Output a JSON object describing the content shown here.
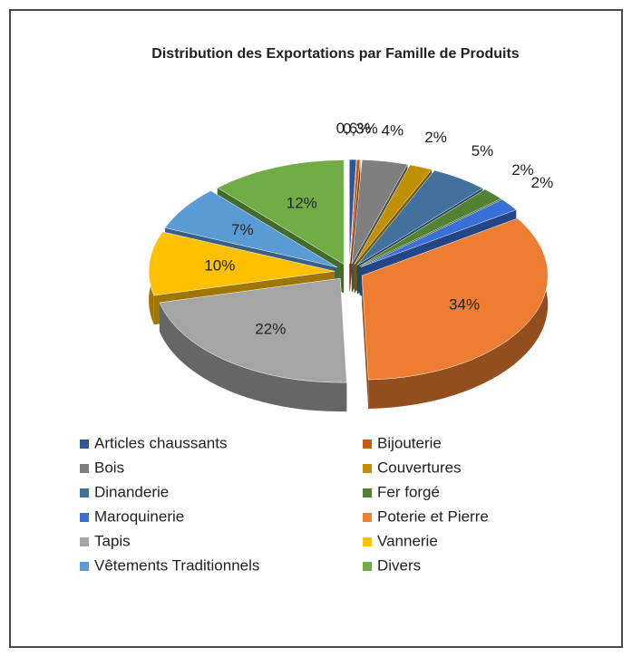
{
  "chart_data": {
    "type": "pie",
    "title": "Distribution des Exportations par Famille de Produits",
    "categories": [
      "Articles chaussants",
      "Bijouterie",
      "Bois",
      "Couvertures",
      "Dinanderie",
      "Fer forgé",
      "Maroquinerie",
      "Poterie et Pierre",
      "Tapis",
      "Vannerie",
      "Vêtements Traditionnels",
      "Divers"
    ],
    "values": [
      0.6,
      0.3,
      4,
      2,
      5,
      2,
      2,
      34,
      22,
      10,
      7,
      12
    ],
    "value_labels": [
      "0,6%",
      "0,3%",
      "4%",
      "2%",
      "5%",
      "2%",
      "2%",
      "34%",
      "22%",
      "10%",
      "7%",
      "12%"
    ],
    "colors": [
      "#2f5597",
      "#c55a11",
      "#7f7f7f",
      "#bf9000",
      "#41719c",
      "#548235",
      "#3a6fd8",
      "#ed7d31",
      "#a5a5a5",
      "#ffc000",
      "#5b9bd5",
      "#70ad47"
    ],
    "legend": "bottom"
  }
}
